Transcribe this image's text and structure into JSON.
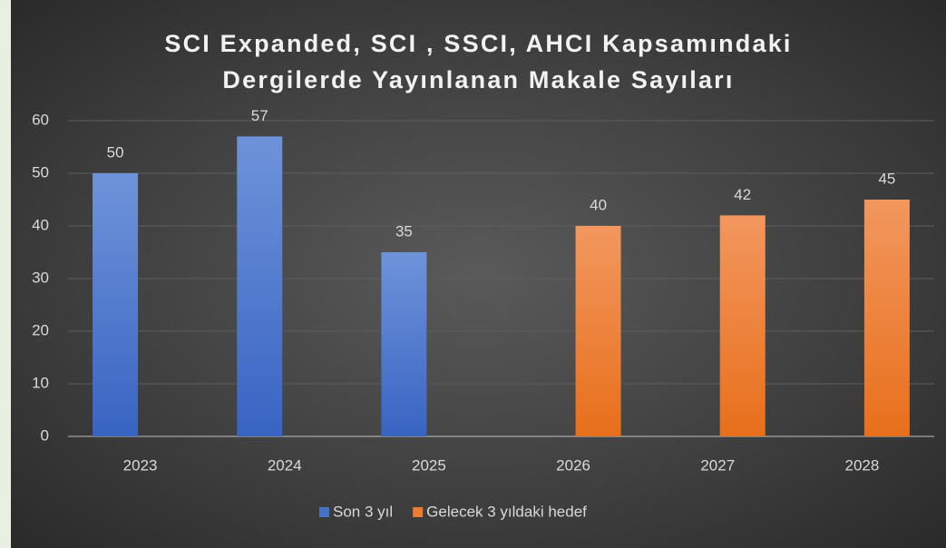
{
  "chart_data": {
    "type": "bar",
    "title": "SCI Expanded, SCI , SSCI, AHCI Kapsamındaki\nDergilerde Yayınlanan Makale Sayıları",
    "categories": [
      "2023",
      "2024",
      "2025",
      "2026",
      "2027",
      "2028"
    ],
    "series": [
      {
        "name": "Son 3 yıl",
        "color": "#4472c4",
        "values": [
          50,
          57,
          35,
          null,
          null,
          null
        ]
      },
      {
        "name": "Gelecek 3 yıldaki hedef",
        "color": "#ed7d31",
        "values": [
          null,
          null,
          null,
          40,
          42,
          45
        ]
      }
    ],
    "ylim": [
      0,
      60
    ],
    "yticks": [
      0,
      10,
      20,
      30,
      40,
      50,
      60
    ],
    "grid": true,
    "legend": "bottom"
  }
}
